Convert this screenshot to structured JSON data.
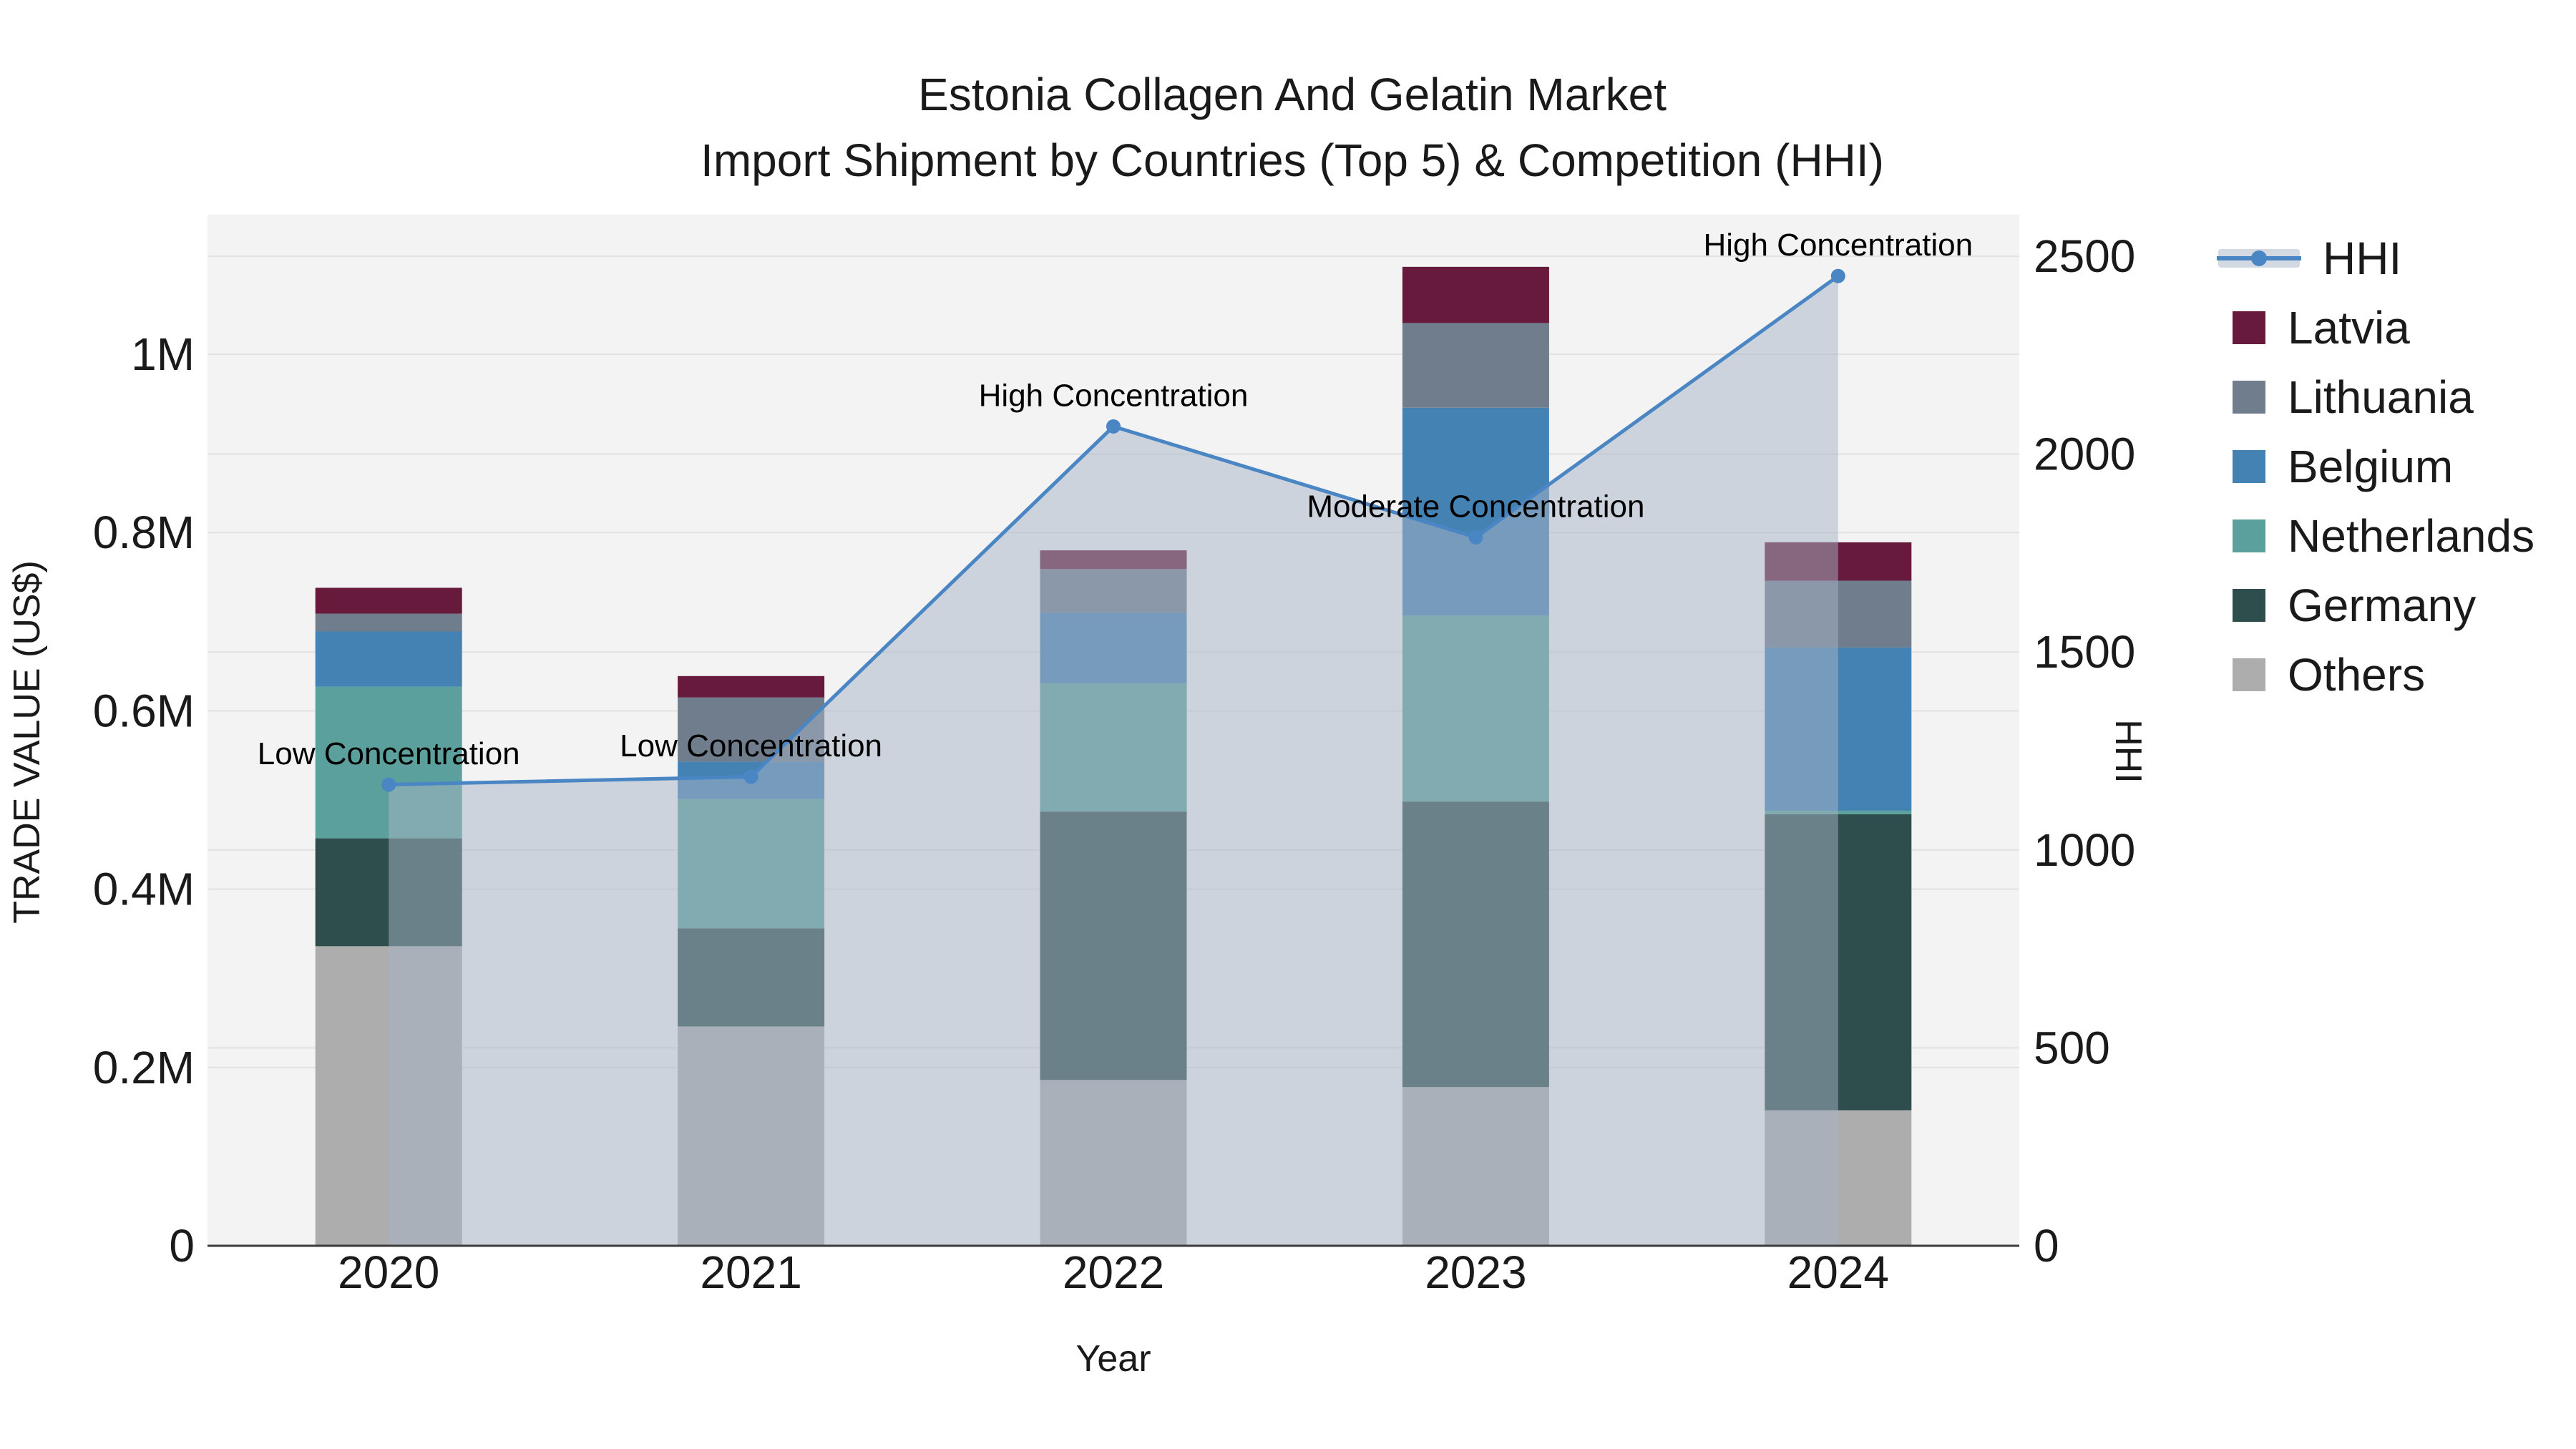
{
  "header": {
    "title_line1": "Estonia Collagen And Gelatin Market",
    "title_line2": "Import Shipment by Countries (Top 5) & Competition (HHI)"
  },
  "chart_data": {
    "type": "combo_stacked_bar_line",
    "categories": [
      "2020",
      "2021",
      "2022",
      "2023",
      "2024"
    ],
    "xlabel": "Year",
    "y_left": {
      "label": "TRADE VALUE (US$)",
      "tick_labels": [
        "0",
        "0.2M",
        "0.4M",
        "0.6M",
        "0.8M",
        "1M"
      ],
      "tick_values": [
        0,
        200000,
        400000,
        600000,
        800000,
        1000000
      ],
      "axis_max": 1156500
    },
    "y_right": {
      "label": "HHI",
      "tick_labels": [
        "0",
        "500",
        "1000",
        "1500",
        "2000",
        "2500"
      ],
      "tick_values": [
        0,
        500,
        1000,
        1500,
        2000,
        2500
      ],
      "axis_max": 2605
    },
    "bar_series_bottom_to_top": [
      {
        "name": "Others",
        "color": "#ADADAD",
        "values": [
          336000,
          246000,
          186000,
          178000,
          152000
        ]
      },
      {
        "name": "Germany",
        "color": "#2E4E4D",
        "values": [
          121000,
          110000,
          301000,
          320000,
          332000
        ]
      },
      {
        "name": "Netherlands",
        "color": "#5CA09D",
        "values": [
          170000,
          145000,
          144000,
          209000,
          4000
        ]
      },
      {
        "name": "Belgium",
        "color": "#4582B4",
        "values": [
          62000,
          42000,
          79000,
          233000,
          183000
        ]
      },
      {
        "name": "Lithuania",
        "color": "#6F7D8C",
        "values": [
          20000,
          72000,
          49000,
          95000,
          75000
        ]
      },
      {
        "name": "Latvia",
        "color": "#671A3B",
        "values": [
          29000,
          24000,
          21000,
          63000,
          43000
        ]
      }
    ],
    "hhi_line": {
      "name": "HHI",
      "values": [
        1165,
        1185,
        2070,
        1790,
        2450
      ],
      "color": "#4A86C4",
      "area_fill": "rgba(168,180,198,0.5)"
    },
    "annotations": [
      "Low Concentration",
      "Low Concentration",
      "High Concentration",
      "Moderate Concentration",
      "High Concentration"
    ],
    "legend": {
      "position": "right",
      "items": [
        {
          "label": "HHI",
          "kind": "line",
          "color": "#4A86C4"
        },
        {
          "label": "Latvia",
          "kind": "swatch",
          "color": "#671A3B"
        },
        {
          "label": "Lithuania",
          "kind": "swatch",
          "color": "#6F7D8C"
        },
        {
          "label": "Belgium",
          "kind": "swatch",
          "color": "#4582B4"
        },
        {
          "label": "Netherlands",
          "kind": "swatch",
          "color": "#5CA09D"
        },
        {
          "label": "Germany",
          "kind": "swatch",
          "color": "#2E4E4D"
        },
        {
          "label": "Others",
          "kind": "swatch",
          "color": "#ADADAD"
        }
      ]
    },
    "layout_hints": {
      "plot_background": "#F3F3F3",
      "grid_color": "#E2E2E2",
      "axis_line_color": "#3B3B3B",
      "grid": "on"
    }
  }
}
